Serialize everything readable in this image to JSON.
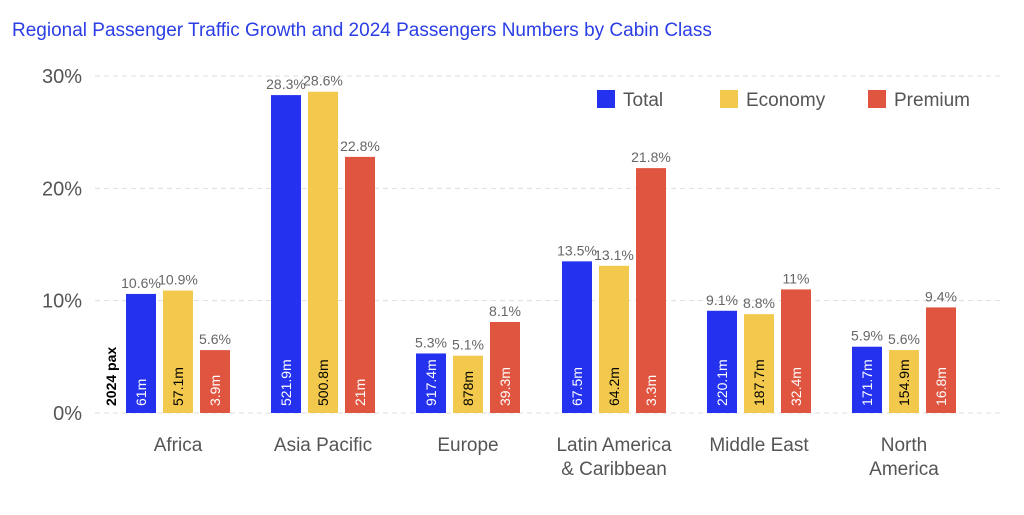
{
  "chart_data": {
    "type": "bar",
    "title": "Regional Passenger Traffic Growth and 2024 Passengers Numbers by Cabin Class",
    "categories": [
      [
        "Africa"
      ],
      [
        "Asia Pacific"
      ],
      [
        "Europe"
      ],
      [
        "Latin America",
        "& Caribbean"
      ],
      [
        "Middle East"
      ],
      [
        "North",
        "America"
      ]
    ],
    "ylim": [
      0,
      30
    ],
    "yticks": [
      0,
      10,
      20,
      30
    ],
    "ytick_labels": [
      "0%",
      "10%",
      "20%",
      "30%"
    ],
    "grid": true,
    "legend_position": "top-right",
    "inner_label_title": "2024 pax",
    "series": [
      {
        "name": "Total",
        "color": "#2432f0",
        "values": [
          10.6,
          28.3,
          5.3,
          13.5,
          9.1,
          5.9
        ],
        "labels": [
          "10.6%",
          "28.3%",
          "5.3%",
          "13.5%",
          "9.1%",
          "5.9%"
        ],
        "pax": [
          "61m",
          "521.9m",
          "917.4m",
          "67.5m",
          "220.1m",
          "171.7m"
        ],
        "pax_text_color": "#ffffff"
      },
      {
        "name": "Economy",
        "color": "#f2c94c",
        "values": [
          10.9,
          28.6,
          5.1,
          13.1,
          8.8,
          5.6
        ],
        "labels": [
          "10.9%",
          "28.6%",
          "5.1%",
          "13.1%",
          "8.8%",
          "5.6%"
        ],
        "pax": [
          "57.1m",
          "500.8m",
          "878m",
          "64.2m",
          "187.7m",
          "154.9m"
        ],
        "pax_text_color": "#000000"
      },
      {
        "name": "Premium",
        "color": "#e05540",
        "values": [
          5.6,
          22.8,
          8.1,
          21.8,
          11,
          9.4
        ],
        "labels": [
          "5.6%",
          "22.8%",
          "8.1%",
          "21.8%",
          "11%",
          "9.4%"
        ],
        "pax": [
          "3.9m",
          "21m",
          "39.3m",
          "3.3m",
          "32.4m",
          "16.8m"
        ],
        "pax_text_color": "#ffffff"
      }
    ]
  }
}
